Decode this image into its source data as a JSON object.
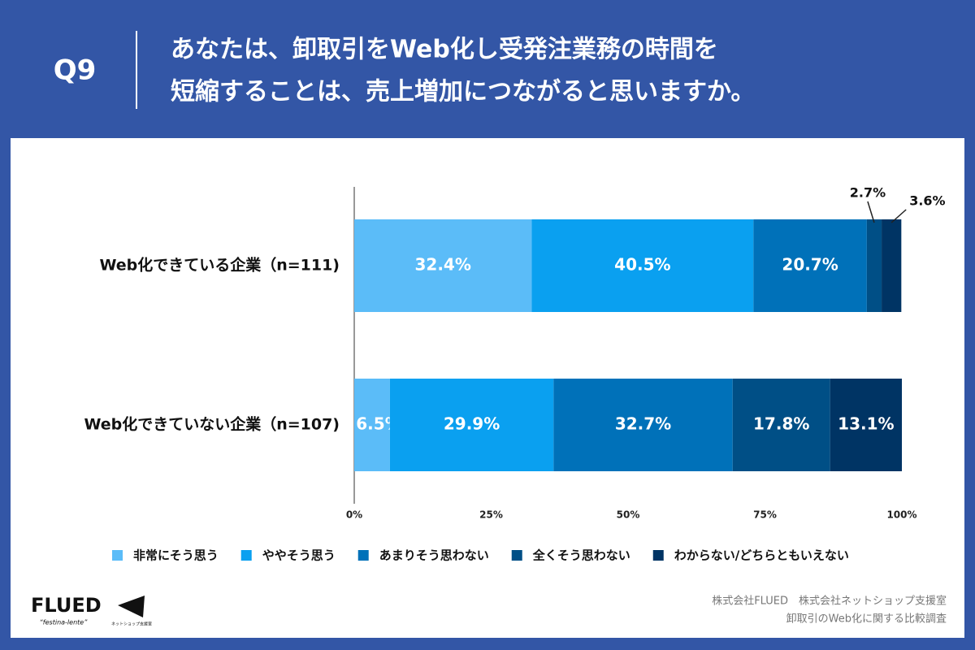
{
  "chart_data": {
    "type": "stacked_bar_horizontal",
    "question_number": "Q9",
    "title_lines": [
      "あなたは、卸取引をWeb化し受発注業務の時間を",
      "短縮することは、売上増加につながると思いますか。"
    ],
    "categories": [
      "Web化できている企業（n=111)",
      "Web化できていない企業（n=107)"
    ],
    "series": [
      {
        "name": "非常にそう思う",
        "color": "#5bbcf8",
        "values": [
          32.4,
          6.5
        ],
        "value_labels": [
          "32.4%",
          "6.5%"
        ]
      },
      {
        "name": "ややそう思う",
        "color": "#0aa0f0",
        "values": [
          40.5,
          29.9
        ],
        "value_labels": [
          "40.5%",
          "29.9%"
        ]
      },
      {
        "name": "あまりそう思わない",
        "color": "#0071b9",
        "values": [
          20.7,
          32.7
        ],
        "value_labels": [
          "20.7%",
          "32.7%"
        ]
      },
      {
        "name": "全くそう思わない",
        "color": "#004f86",
        "values": [
          2.7,
          17.8
        ],
        "value_labels": [
          "2.7%",
          "17.8%"
        ]
      },
      {
        "name": "わからない/どちらともいえない",
        "color": "#003464",
        "values": [
          3.6,
          13.1
        ],
        "value_labels": [
          "3.6%",
          "13.1%"
        ]
      }
    ],
    "xlim": [
      0,
      100
    ],
    "xticks": [
      {
        "value": 0,
        "label": "0%"
      },
      {
        "value": 25,
        "label": "25%"
      },
      {
        "value": 50,
        "label": "50%"
      },
      {
        "value": 75,
        "label": "75%"
      },
      {
        "value": 100,
        "label": "100%"
      }
    ],
    "legend": "bottom"
  },
  "footer": {
    "credit": "株式会社FLUED　株式会社ネットショップ支援室",
    "survey": "卸取引のWeb化に関する比較調査"
  },
  "logo": {
    "name": "FLUED",
    "motto": "“festina-lente”",
    "partner": "ネットショップ支援室"
  }
}
